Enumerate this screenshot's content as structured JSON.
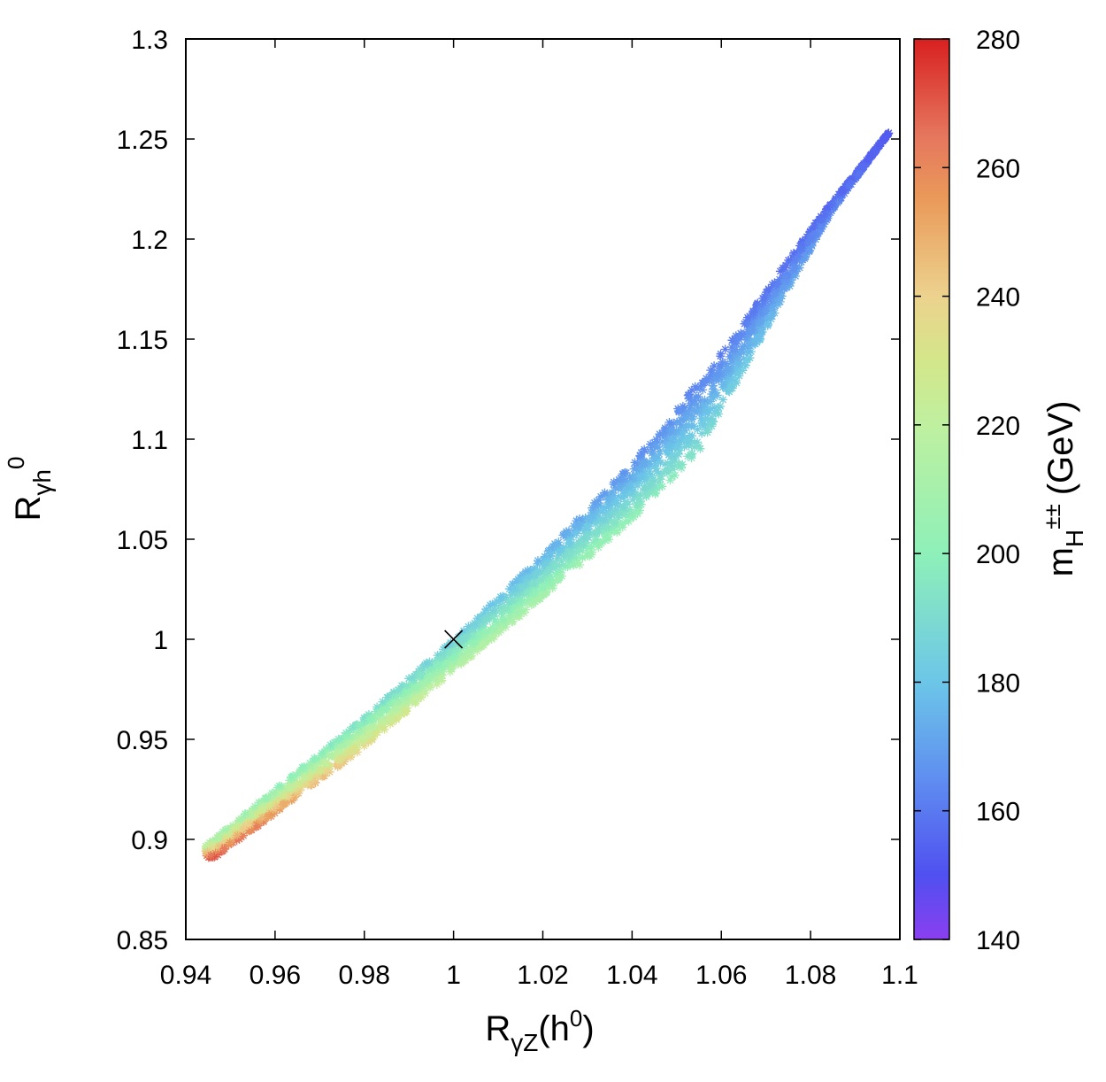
{
  "chart_data": {
    "type": "scatter",
    "title": "",
    "xlabel": {
      "base": "R",
      "sub": "γZ",
      "tail": "(h",
      "sup": "0",
      "close": ")"
    },
    "ylabel": {
      "base": "R",
      "sub": "γh",
      "sup": "0"
    },
    "xlim": [
      0.94,
      1.1
    ],
    "ylim": [
      0.85,
      1.3
    ],
    "xticks": [
      0.94,
      0.96,
      0.98,
      1.0,
      1.02,
      1.04,
      1.06,
      1.08,
      1.1
    ],
    "xtick_labels": [
      "0.94",
      "0.96",
      "0.98",
      "1",
      "1.02",
      "1.04",
      "1.06",
      "1.08",
      "1.1"
    ],
    "yticks": [
      0.85,
      0.9,
      0.95,
      1.0,
      1.05,
      1.1,
      1.15,
      1.2,
      1.25,
      1.3
    ],
    "ytick_labels": [
      "0.85",
      "0.9",
      "0.95",
      "1",
      "1.05",
      "1.1",
      "1.15",
      "1.2",
      "1.25",
      "1.3"
    ],
    "marker": "asterisk",
    "band": {
      "description_series": "Scan points colored by charged Higgs mass",
      "upper_edge": [
        [
          0.9445,
          0.897
        ],
        [
          0.96,
          0.925
        ],
        [
          0.98,
          0.961
        ],
        [
          1.0,
          1.0
        ],
        [
          1.02,
          1.042
        ],
        [
          1.04,
          1.088
        ],
        [
          1.06,
          1.143
        ],
        [
          1.08,
          1.205
        ],
        [
          1.0975,
          1.253
        ]
      ],
      "lower_edge": [
        [
          0.9465,
          0.891
        ],
        [
          0.96,
          0.913
        ],
        [
          0.98,
          0.946
        ],
        [
          1.0,
          0.984
        ],
        [
          1.02,
          1.021
        ],
        [
          1.04,
          1.06
        ],
        [
          1.055,
          1.094
        ],
        [
          1.07,
          1.155
        ],
        [
          1.085,
          1.215
        ],
        [
          1.0975,
          1.253
        ]
      ],
      "mass_along_x": [
        [
          0.945,
          275
        ],
        [
          0.97,
          250
        ],
        [
          1.0,
          220
        ],
        [
          1.02,
          212
        ],
        [
          1.05,
          198
        ],
        [
          1.07,
          180
        ],
        [
          1.1,
          150
        ]
      ],
      "mass_top_edge": [
        [
          0.945,
          210
        ],
        [
          0.96,
          200
        ],
        [
          1.0,
          183
        ],
        [
          1.04,
          165
        ],
        [
          1.07,
          158
        ],
        [
          1.1,
          152
        ]
      ]
    },
    "reference_point": {
      "x": 1.0,
      "y": 1.0,
      "marker": "x",
      "color": "#000000"
    },
    "colorbar": {
      "label_base": "m",
      "label_sub": "H",
      "label_sup": "±±",
      "label_unit": "(GeV)",
      "range": [
        140,
        280
      ],
      "ticks": [
        140,
        160,
        180,
        200,
        220,
        240,
        260,
        280
      ],
      "tick_labels": [
        "140",
        "160",
        "180",
        "200",
        "220",
        "240",
        "260",
        "280"
      ],
      "colormap": [
        [
          140,
          "#8a3ff0"
        ],
        [
          150,
          "#5050f0"
        ],
        [
          165,
          "#5f8ef0"
        ],
        [
          180,
          "#6cc6e8"
        ],
        [
          200,
          "#8ef0b8"
        ],
        [
          220,
          "#bff0a0"
        ],
        [
          230,
          "#d4e68a"
        ],
        [
          240,
          "#ecd28e"
        ],
        [
          255,
          "#ea9a5a"
        ],
        [
          265,
          "#e5765e"
        ],
        [
          280,
          "#d82020"
        ]
      ]
    }
  }
}
